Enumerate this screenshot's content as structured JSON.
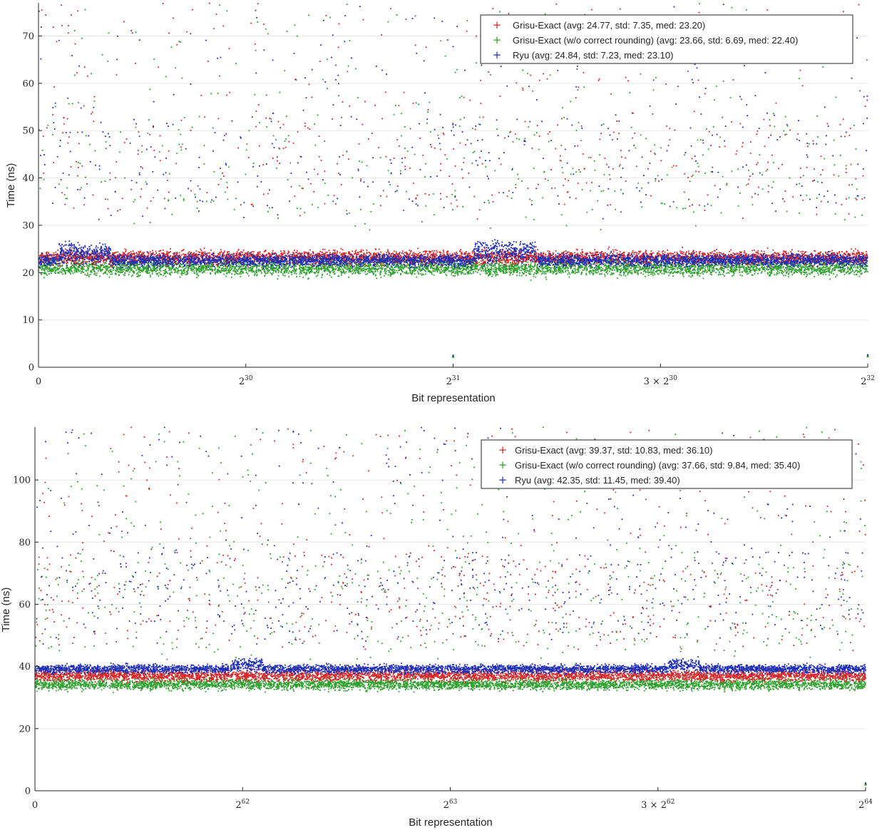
{
  "colors": {
    "grisu": "#d62728",
    "grisu_norc": "#2ca02c",
    "ryu": "#1f2fb4"
  },
  "chart_data": [
    {
      "type": "scatter",
      "xlabel": "Bit representation",
      "ylabel": "Time (ns)",
      "xlim": [
        0,
        4
      ],
      "ylim": [
        0,
        77
      ],
      "yticks": [
        0,
        10,
        20,
        30,
        40,
        50,
        60,
        70
      ],
      "xticks": [
        {
          "value": 0,
          "base": "0",
          "prefix": "",
          "exp": ""
        },
        {
          "value": 1,
          "base": "2",
          "prefix": "",
          "exp": "30"
        },
        {
          "value": 2,
          "base": "2",
          "prefix": "",
          "exp": "31"
        },
        {
          "value": 3,
          "base": "2",
          "prefix": "3 × ",
          "exp": "30"
        },
        {
          "value": 4,
          "base": "2",
          "prefix": "",
          "exp": "32"
        }
      ],
      "grid": true,
      "legend_position": "top-right",
      "series": [
        {
          "name": "Grisu-Exact (avg: 24.77, std: 7.35, med: 23.20)",
          "color_key": "grisu",
          "band": [
            23.2,
            1.4
          ],
          "outlier_fraction": 0.09,
          "bumps": []
        },
        {
          "name": "Grisu-Exact (w/o correct rounding) (avg: 23.66, std: 6.69, med: 22.40)",
          "color_key": "grisu_norc",
          "band": [
            21.0,
            1.6
          ],
          "outlier_fraction": 0.08,
          "bumps": []
        },
        {
          "name": "Ryu (avg: 24.84, std: 7.23, med: 23.10)",
          "color_key": "ryu",
          "band": [
            22.6,
            1.2
          ],
          "outlier_fraction": 0.08,
          "bumps": [
            [
              0.1,
              0.35,
              2.8
            ],
            [
              2.1,
              2.4,
              3.5
            ]
          ]
        }
      ],
      "near_zero_points": [
        {
          "x": 2.0,
          "y": 2.2
        },
        {
          "x": 4.0,
          "y": 2.3
        }
      ]
    },
    {
      "type": "scatter",
      "xlabel": "Bit representation",
      "ylabel": "Time (ns)",
      "xlim": [
        0,
        4
      ],
      "ylim": [
        0,
        117
      ],
      "yticks": [
        0,
        20,
        40,
        60,
        80,
        100
      ],
      "xticks": [
        {
          "value": 0,
          "base": "0",
          "prefix": "",
          "exp": ""
        },
        {
          "value": 1,
          "base": "2",
          "prefix": "",
          "exp": "62"
        },
        {
          "value": 2,
          "base": "2",
          "prefix": "",
          "exp": "63"
        },
        {
          "value": 3,
          "base": "2",
          "prefix": "3 × ",
          "exp": "62"
        },
        {
          "value": 4,
          "base": "2",
          "prefix": "",
          "exp": "64"
        }
      ],
      "grid": true,
      "legend_position": "top-right",
      "series": [
        {
          "name": "Grisu-Exact (avg: 39.37, std: 10.83, med: 36.10)",
          "color_key": "grisu",
          "band": [
            37.0,
            1.6
          ],
          "outlier_fraction": 0.12,
          "bumps": []
        },
        {
          "name": "Grisu-Exact (w/o correct rounding) (avg: 37.66, std: 9.84, med: 35.40)",
          "color_key": "grisu_norc",
          "band": [
            34.2,
            1.7
          ],
          "outlier_fraction": 0.12,
          "bumps": []
        },
        {
          "name": "Ryu (avg: 42.35, std: 11.45, med: 39.40)",
          "color_key": "ryu",
          "band": [
            39.2,
            1.3
          ],
          "outlier_fraction": 0.12,
          "bumps": [
            [
              0.95,
              1.1,
              2.5
            ],
            [
              3.05,
              3.2,
              2.5
            ]
          ]
        }
      ],
      "near_zero_points": [
        {
          "x": 4.0,
          "y": 2.0
        }
      ]
    }
  ]
}
